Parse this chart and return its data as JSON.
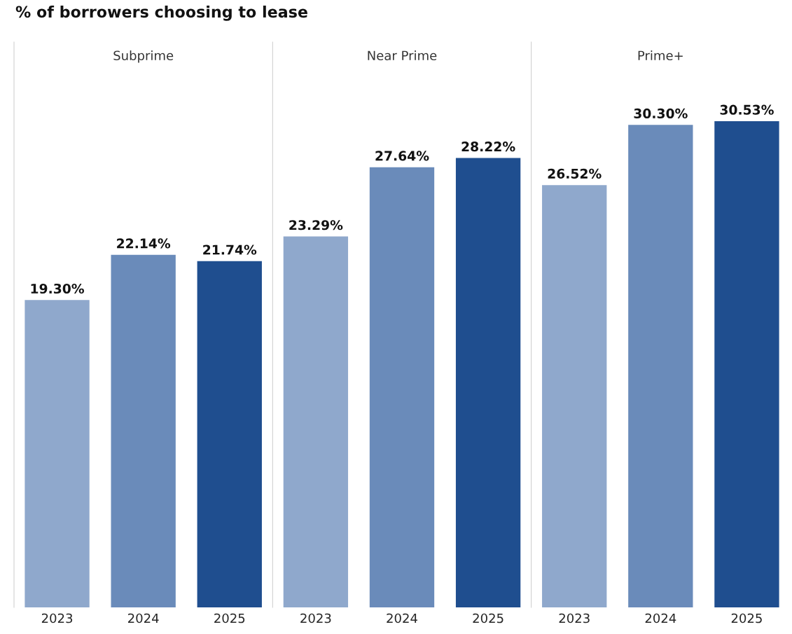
{
  "chart_data": [
    {
      "type": "bar",
      "title": "% of borrowers choosing to lease",
      "subtitle": "Subprime",
      "categories": [
        "2023",
        "2024",
        "2025"
      ],
      "values": [
        19.3,
        22.14,
        21.74
      ],
      "colors": [
        "#8fa8cc",
        "#6a8bba",
        "#1f4e8f"
      ],
      "value_labels": [
        "19.30%",
        "22.14%",
        "21.74%"
      ],
      "ylim": [
        0,
        35.5
      ],
      "tick_labels": "x",
      "grid": false
    },
    {
      "type": "bar",
      "subtitle": "Near Prime",
      "categories": [
        "2023",
        "2024",
        "2025"
      ],
      "values": [
        23.29,
        27.64,
        28.22
      ],
      "colors": [
        "#8fa8cc",
        "#6a8bba",
        "#1f4e8f"
      ],
      "value_labels": [
        "23.29%",
        "27.64%",
        "28.22%"
      ],
      "ylim": [
        0,
        35.5
      ],
      "tick_labels": "x",
      "grid": false
    },
    {
      "type": "bar",
      "subtitle": "Prime+",
      "categories": [
        "2023",
        "2024",
        "2025"
      ],
      "values": [
        26.52,
        30.3,
        30.53
      ],
      "colors": [
        "#8fa8cc",
        "#6a8bba",
        "#1f4e8f"
      ],
      "value_labels": [
        "26.52%",
        "30.30%",
        "30.53%"
      ],
      "ylim": [
        0,
        35.5
      ],
      "tick_labels": "x",
      "grid": false
    }
  ]
}
